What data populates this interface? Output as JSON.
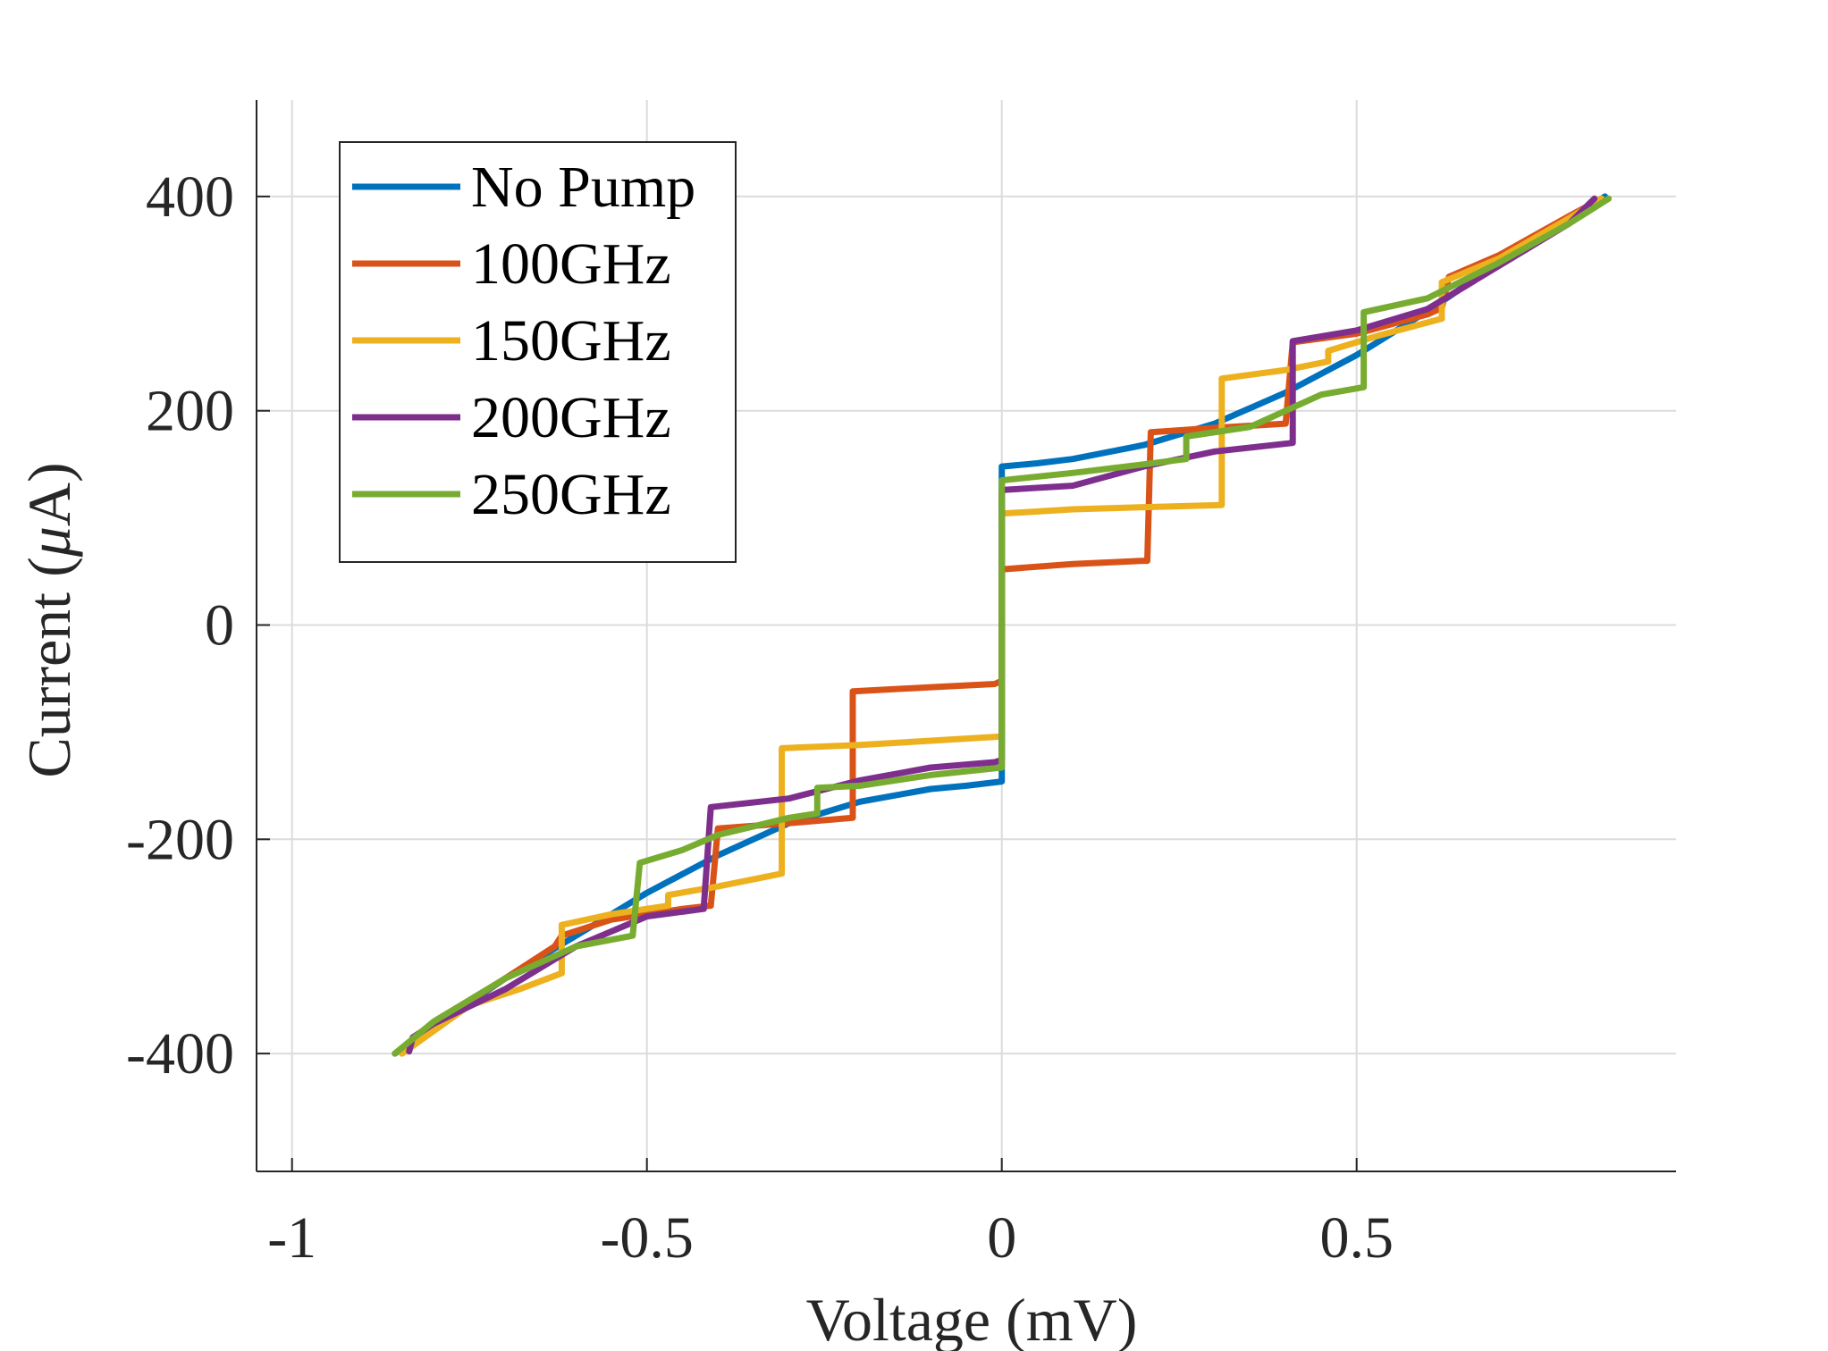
{
  "chart_data": {
    "type": "line",
    "title": "",
    "xlabel": "Voltage (mV)",
    "ylabel_prefix": "Current (",
    "ylabel_symbol": "μ",
    "ylabel_suffix": "A)",
    "xlim": [
      -1.05,
      0.95
    ],
    "ylim": [
      -510,
      490
    ],
    "grid": true,
    "legend_position": "top-left",
    "x_ticks": [
      {
        "value": -1,
        "label": "-1"
      },
      {
        "value": -0.5,
        "label": "-0.5"
      },
      {
        "value": 0,
        "label": "0"
      },
      {
        "value": 0.5,
        "label": "0.5"
      }
    ],
    "y_ticks": [
      {
        "value": 400,
        "label": "400"
      },
      {
        "value": 200,
        "label": "200"
      },
      {
        "value": 0,
        "label": "0"
      },
      {
        "value": -200,
        "label": "-200"
      },
      {
        "value": -400,
        "label": "-400"
      }
    ],
    "series": [
      {
        "name": "No Pump",
        "color": "#0072BD",
        "x": [
          -0.855,
          -0.8,
          -0.7,
          -0.6,
          -0.5,
          -0.4,
          -0.3,
          -0.2,
          -0.1,
          -0.05,
          0,
          0,
          0.05,
          0.1,
          0.2,
          0.3,
          0.4,
          0.5,
          0.6,
          0.7,
          0.8,
          0.85
        ],
        "y": [
          -400,
          -375,
          -330,
          -290,
          -250,
          -215,
          -185,
          -165,
          -153,
          -150,
          -146,
          148,
          151,
          155,
          168,
          188,
          217,
          252,
          293,
          338,
          380,
          400
        ]
      },
      {
        "name": "100GHz",
        "color": "#D95319",
        "x": [
          -0.845,
          -0.8,
          -0.7,
          -0.63,
          -0.62,
          -0.55,
          -0.45,
          -0.41,
          -0.4,
          -0.3,
          -0.21,
          -0.21,
          -0.1,
          -0.01,
          0,
          0,
          0.1,
          0.2,
          0.205,
          0.21,
          0.3,
          0.4,
          0.41,
          0.5,
          0.6,
          0.62,
          0.63,
          0.7,
          0.8,
          0.845
        ],
        "y": [
          -400,
          -372,
          -330,
          -300,
          -290,
          -275,
          -265,
          -262,
          -190,
          -185,
          -180,
          -62,
          -58,
          -55,
          -52,
          52,
          57,
          60,
          60,
          180,
          184,
          188,
          264,
          272,
          290,
          296,
          325,
          345,
          382,
          398
        ]
      },
      {
        "name": "150GHz",
        "color": "#EDB120",
        "x": [
          -0.845,
          -0.75,
          -0.68,
          -0.62,
          -0.62,
          -0.55,
          -0.47,
          -0.47,
          -0.4,
          -0.31,
          -0.31,
          -0.2,
          -0.1,
          0,
          0,
          0.1,
          0.2,
          0.31,
          0.31,
          0.4,
          0.46,
          0.46,
          0.53,
          0.62,
          0.62,
          0.7,
          0.8,
          0.845
        ],
        "y": [
          -400,
          -355,
          -340,
          -325,
          -280,
          -270,
          -262,
          -252,
          -244,
          -232,
          -115,
          -112,
          -108,
          -104,
          104,
          108,
          110,
          112,
          230,
          238,
          246,
          256,
          270,
          286,
          320,
          342,
          380,
          398
        ]
      },
      {
        "name": "200GHz",
        "color": "#7E2F8E",
        "x": [
          -0.835,
          -0.83,
          -0.8,
          -0.7,
          -0.6,
          -0.5,
          -0.42,
          -0.41,
          -0.3,
          -0.2,
          -0.1,
          -0.01,
          0,
          0,
          0.1,
          0.2,
          0.3,
          0.41,
          0.41,
          0.5,
          0.6,
          0.7,
          0.8,
          0.835
        ],
        "y": [
          -398,
          -385,
          -372,
          -340,
          -300,
          -272,
          -265,
          -170,
          -162,
          -145,
          -133,
          -128,
          -126,
          126,
          130,
          148,
          162,
          170,
          265,
          275,
          295,
          335,
          375,
          398
        ]
      },
      {
        "name": "250GHz",
        "color": "#77AC30",
        "x": [
          -0.855,
          -0.8,
          -0.7,
          -0.6,
          -0.52,
          -0.51,
          -0.45,
          -0.4,
          -0.3,
          -0.26,
          -0.26,
          -0.2,
          -0.1,
          0,
          0,
          0.1,
          0.2,
          0.26,
          0.26,
          0.35,
          0.45,
          0.51,
          0.51,
          0.6,
          0.7,
          0.8,
          0.855
        ],
        "y": [
          -400,
          -370,
          -330,
          -300,
          -290,
          -222,
          -210,
          -196,
          -180,
          -176,
          -152,
          -150,
          -140,
          -133,
          135,
          142,
          150,
          155,
          176,
          185,
          215,
          222,
          292,
          305,
          338,
          375,
          398
        ]
      }
    ]
  }
}
